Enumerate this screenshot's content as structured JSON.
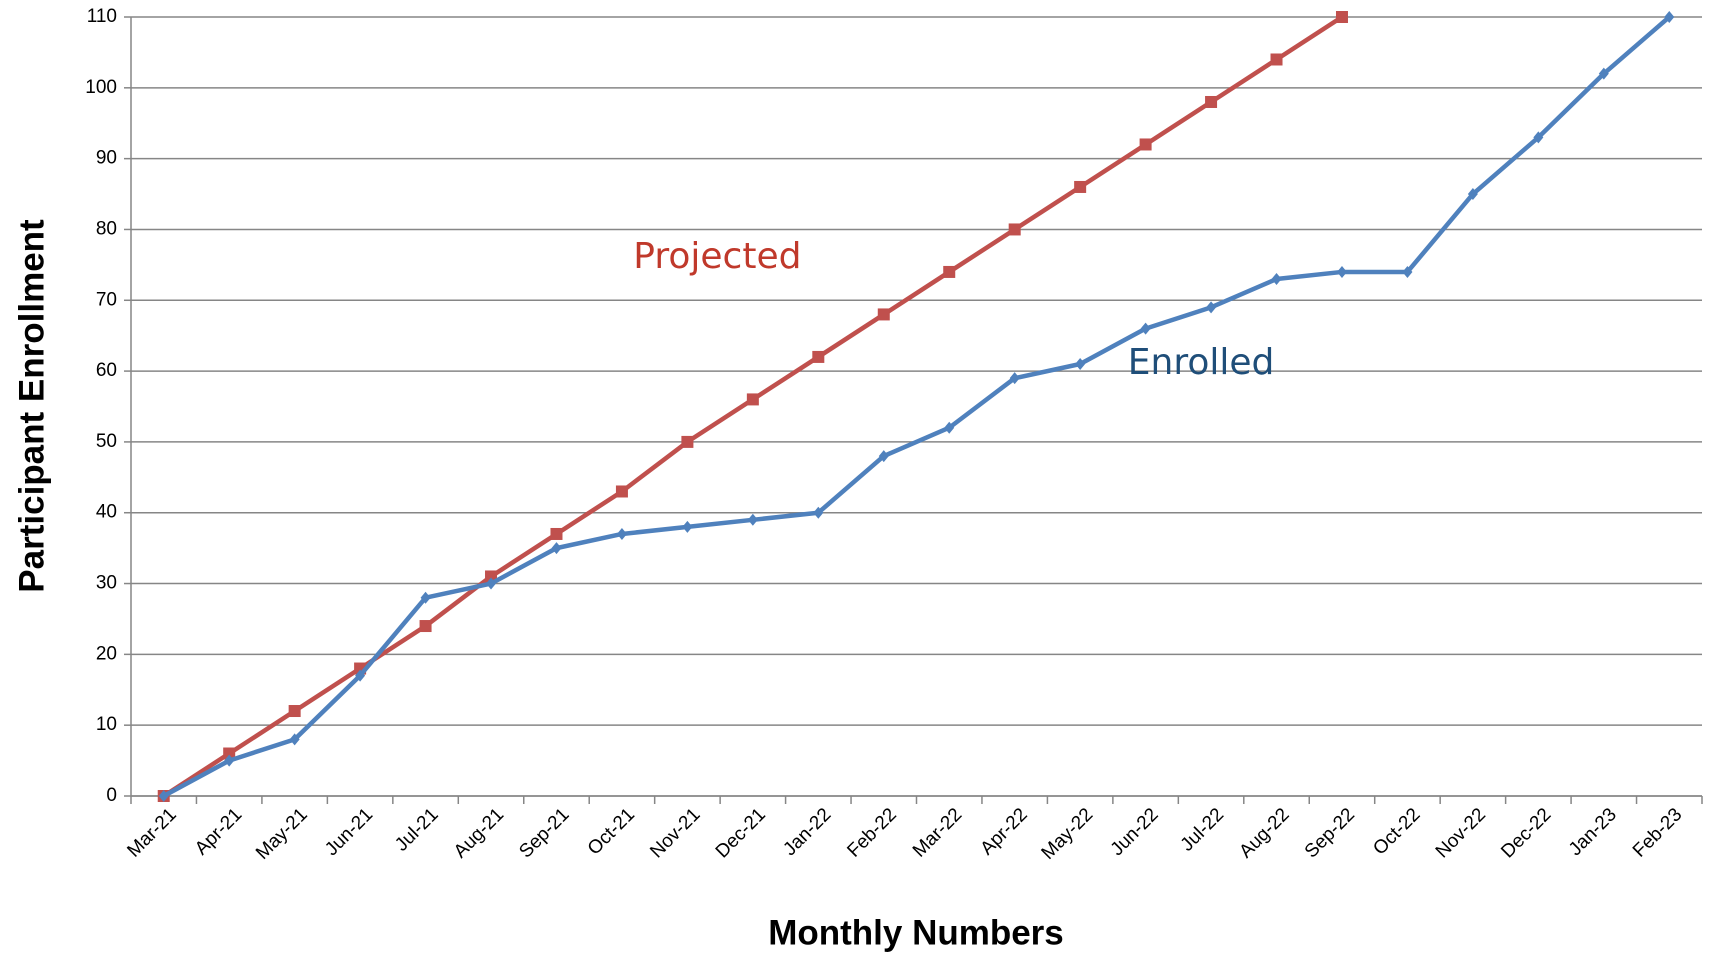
{
  "chart_data": {
    "type": "line",
    "x_label": "Monthly Numbers",
    "y_label": "Participant Enrollment",
    "categories": [
      "Mar-21",
      "Apr-21",
      "May-21",
      "Jun-21",
      "Jul-21",
      "Aug-21",
      "Sep-21",
      "Oct-21",
      "Nov-21",
      "Dec-21",
      "Jan-22",
      "Feb-22",
      "Mar-22",
      "Apr-22",
      "May-22",
      "Jun-22",
      "Jul-22",
      "Aug-22",
      "Sep-22",
      "Oct-22",
      "Nov-22",
      "Dec-22",
      "Jan-23",
      "Feb-23"
    ],
    "series": [
      {
        "name": "Projected",
        "color": "#c0504d",
        "marker": "square",
        "values": [
          0,
          6,
          12,
          18,
          24,
          31,
          37,
          43,
          50,
          56,
          62,
          68,
          74,
          80,
          86,
          92,
          98,
          104,
          110,
          null,
          null,
          null,
          null,
          null
        ]
      },
      {
        "name": "Enrolled",
        "color": "#4f81bd",
        "marker": "diamond",
        "values": [
          0,
          5,
          8,
          17,
          28,
          30,
          35,
          37,
          38,
          39,
          40,
          48,
          52,
          59,
          61,
          66,
          69,
          73,
          74,
          74,
          85,
          93,
          102,
          110
        ]
      }
    ],
    "annotations": [
      {
        "text": "Projected",
        "color": "#c0392b"
      },
      {
        "text": "Enrolled",
        "color": "#1f4e79"
      }
    ],
    "ylim": [
      0,
      110
    ],
    "yticks": [
      0,
      10,
      20,
      30,
      40,
      50,
      60,
      70,
      80,
      90,
      100,
      110
    ],
    "grid": true,
    "legend": false
  }
}
